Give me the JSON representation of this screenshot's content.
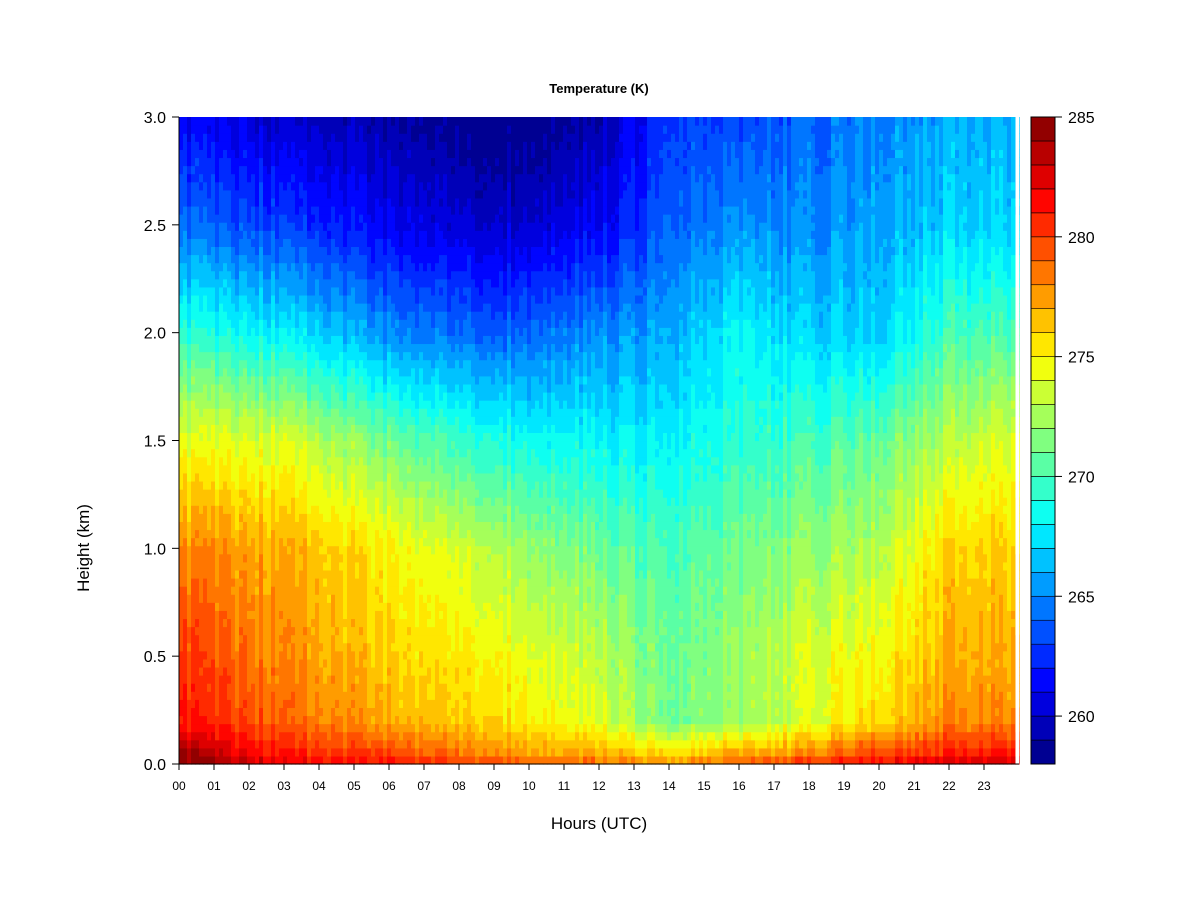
{
  "chart_data": {
    "type": "heatmap",
    "title": "Temperature (K)",
    "xlabel": "Hours (UTC)",
    "ylabel": "Height (km)",
    "x_ticks": [
      "00",
      "01",
      "02",
      "03",
      "04",
      "05",
      "06",
      "07",
      "08",
      "09",
      "10",
      "11",
      "12",
      "13",
      "14",
      "15",
      "16",
      "17",
      "18",
      "19",
      "20",
      "21",
      "22",
      "23"
    ],
    "x_range": [
      0,
      23.9
    ],
    "y_ticks": [
      "0.0",
      "0.5",
      "1.0",
      "1.5",
      "2.0",
      "2.5",
      "3.0"
    ],
    "y_range": [
      0,
      3.0
    ],
    "colorbar": {
      "ticks": [
        "260",
        "265",
        "270",
        "275",
        "280",
        "285"
      ],
      "range": [
        258,
        285
      ],
      "levels": 27
    },
    "profiles": {
      "description_hours": [
        0,
        3,
        6,
        9,
        12,
        14,
        16,
        18,
        20,
        22,
        23.9
      ],
      "heights_km": [
        0,
        0.05,
        0.2,
        0.5,
        1.0,
        1.5,
        2.0,
        2.5,
        3.0
      ],
      "values": [
        [
          285,
          284,
          281,
          280,
          278,
          274,
          269,
          264,
          261
        ],
        [
          282,
          281,
          279,
          278,
          277,
          274,
          268,
          263,
          260
        ],
        [
          281,
          280,
          277,
          276,
          275,
          271,
          265,
          261,
          259
        ],
        [
          280,
          278,
          276,
          275,
          273,
          269,
          264,
          260,
          258
        ],
        [
          279,
          277,
          274,
          273,
          271,
          268,
          265,
          261,
          259
        ],
        [
          278,
          276,
          271,
          271,
          270,
          268,
          266,
          264,
          263
        ],
        [
          279,
          277,
          272,
          272,
          271,
          269,
          268,
          265,
          263
        ],
        [
          281,
          278,
          274,
          274,
          272,
          270,
          267,
          265,
          264
        ],
        [
          282,
          280,
          276,
          275,
          273,
          271,
          267,
          266,
          265
        ],
        [
          283,
          281,
          278,
          277,
          276,
          273,
          270,
          267,
          266
        ],
        [
          283,
          281,
          278,
          277,
          276,
          274,
          270,
          267,
          266
        ]
      ]
    }
  }
}
